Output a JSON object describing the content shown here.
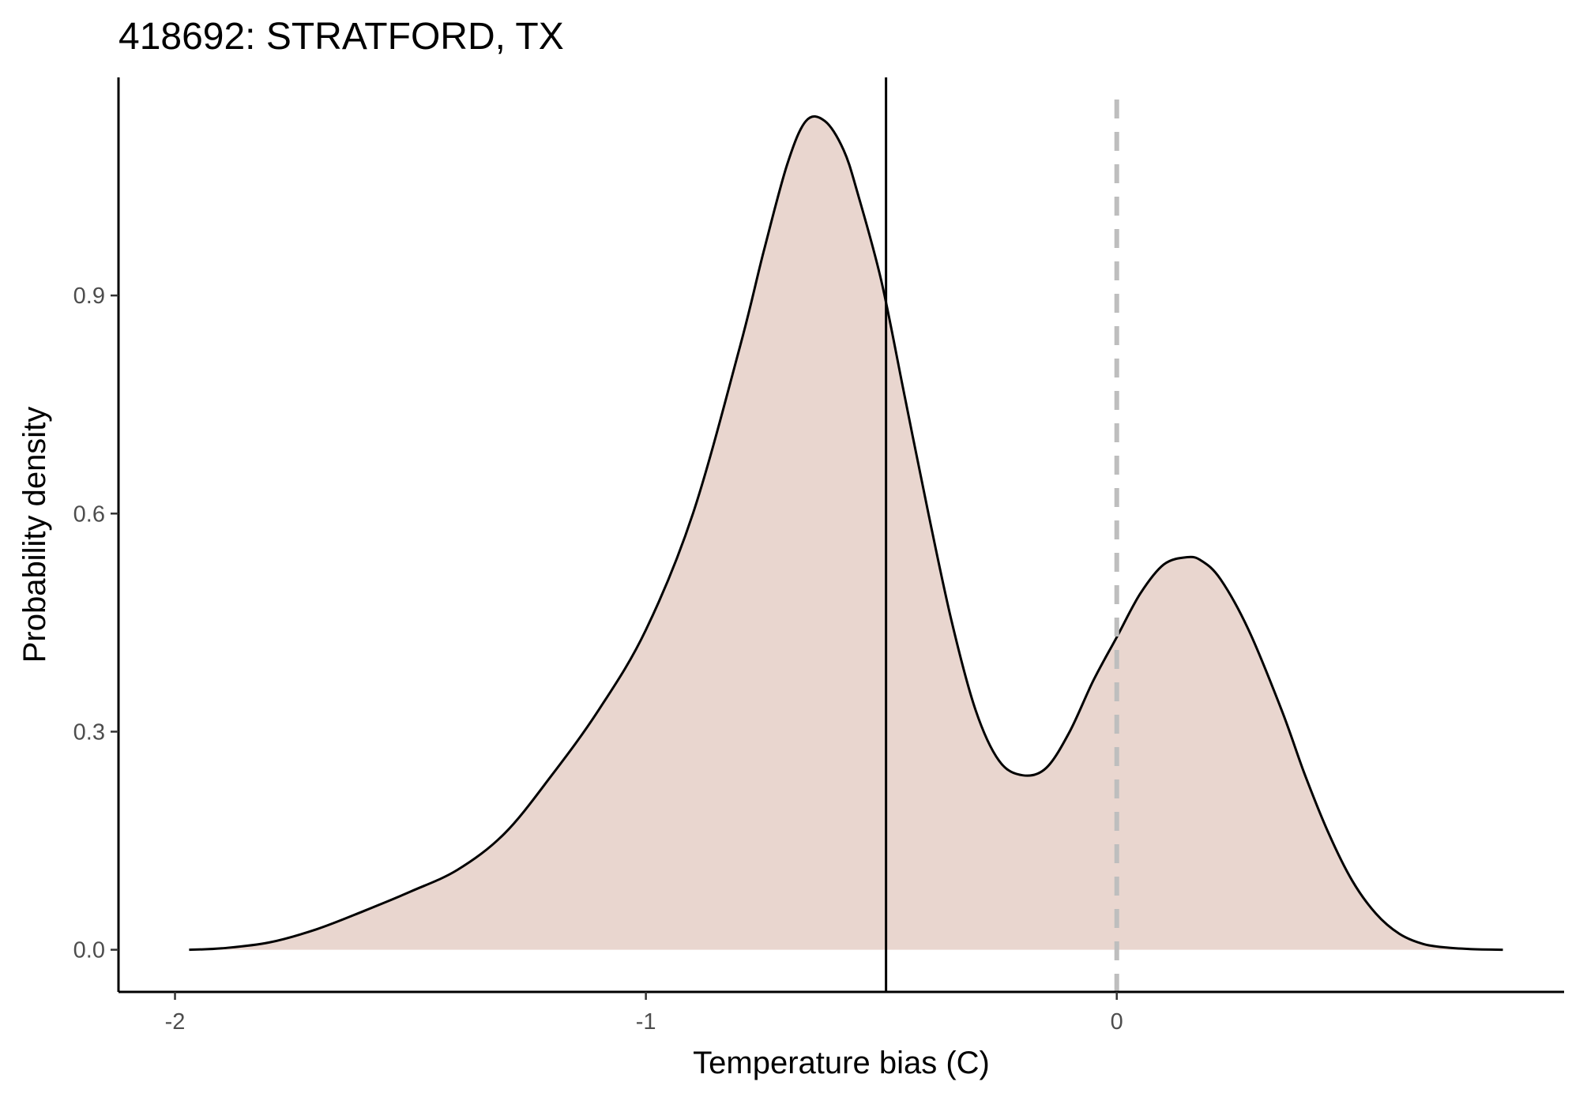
{
  "chart_data": {
    "type": "area",
    "title": "418692: STRATFORD, TX",
    "xlabel": "Temperature bias (C)",
    "ylabel": "Probability density",
    "xlim": [
      -2.12,
      0.95
    ],
    "ylim": [
      -0.058,
      1.2
    ],
    "x_ticks": [
      -2,
      -1,
      0
    ],
    "x_tick_labels": [
      "-2",
      "-1",
      "0"
    ],
    "y_ticks": [
      0.0,
      0.3,
      0.6,
      0.9
    ],
    "y_tick_labels": [
      "0.0",
      "0.3",
      "0.6",
      "0.9"
    ],
    "grid": false,
    "fill_color": "#e9d6cf",
    "line_color": "#000000",
    "vline_solid": {
      "x": -0.49,
      "color": "#000000"
    },
    "vline_dashed": {
      "x": 0.0,
      "color": "#bebebe"
    },
    "density": {
      "x": [
        -1.97,
        -1.9,
        -1.8,
        -1.7,
        -1.6,
        -1.5,
        -1.4,
        -1.3,
        -1.2,
        -1.1,
        -1.0,
        -0.9,
        -0.8,
        -0.75,
        -0.7,
        -0.66,
        -0.62,
        -0.58,
        -0.55,
        -0.5,
        -0.45,
        -0.4,
        -0.35,
        -0.3,
        -0.25,
        -0.2,
        -0.15,
        -0.1,
        -0.05,
        0.0,
        0.05,
        0.1,
        0.15,
        0.18,
        0.22,
        0.28,
        0.35,
        0.4,
        0.45,
        0.5,
        0.55,
        0.6,
        0.65,
        0.7,
        0.75,
        0.82
      ],
      "y": [
        0.0,
        0.002,
        0.01,
        0.028,
        0.053,
        0.08,
        0.11,
        0.16,
        0.24,
        0.33,
        0.44,
        0.6,
        0.83,
        0.96,
        1.08,
        1.14,
        1.14,
        1.1,
        1.04,
        0.92,
        0.76,
        0.6,
        0.45,
        0.33,
        0.26,
        0.24,
        0.25,
        0.3,
        0.37,
        0.43,
        0.49,
        0.53,
        0.54,
        0.535,
        0.51,
        0.44,
        0.33,
        0.24,
        0.16,
        0.095,
        0.05,
        0.022,
        0.008,
        0.003,
        0.001,
        0.0
      ]
    }
  }
}
